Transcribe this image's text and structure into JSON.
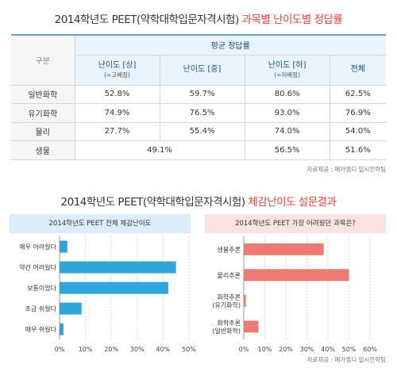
{
  "header": {
    "title_plain": "2014학년도 PEET(약학대학입문자격시험) ",
    "title_highlight": "과목별 난이도별 정답률"
  },
  "rate_table": {
    "gubun_label": "구분",
    "avg_label": "평균 정답률",
    "columns": [
      {
        "label": "난이도 [상]",
        "sub": "(=고배점)"
      },
      {
        "label": "난이도 [중]",
        "sub": ""
      },
      {
        "label": "난이도 [하]",
        "sub": "(=저배점)"
      },
      {
        "label": "전체",
        "sub": ""
      }
    ],
    "rows": [
      {
        "subject": "일반화학",
        "hi": "52.8%",
        "mid": "59.7%",
        "low": "80.6%",
        "total": "62.5%"
      },
      {
        "subject": "유기화학",
        "hi": "74.9%",
        "mid": "76.5%",
        "low": "93.0%",
        "total": "76.9%"
      },
      {
        "subject": "물리",
        "hi": "27.7%",
        "mid": "55.4%",
        "low": "74.0%",
        "total": "54.0%"
      },
      {
        "subject": "생물",
        "himid": "49.1%",
        "low": "56.5%",
        "total": "51.6%"
      }
    ],
    "source": "자료제공 : 메가엠디 입시전략팀"
  },
  "survey": {
    "title_plain": "2014학년도 PEET(약학대학입문자격시험) ",
    "title_highlight": "체감난이도 설문결과",
    "source": "자료제공 : 메가엠디 입시전략팀"
  },
  "chart_data": [
    {
      "type": "bar",
      "orientation": "horizontal",
      "title": "2014학년도 PEET 전체 체감난이도",
      "categories": [
        "매우 어려웠다",
        "약간 어려웠다",
        "보통이었다",
        "조금 쉬웠다",
        "매우 쉬웠다"
      ],
      "values": [
        3,
        45,
        42,
        8.5,
        1.5
      ],
      "xlim": [
        0,
        50
      ],
      "ticks": [
        "0%",
        "10%",
        "20%",
        "30%",
        "40%",
        "50%"
      ],
      "color": "#2ea6dc",
      "grid": true
    },
    {
      "type": "bar",
      "orientation": "horizontal",
      "title": "2014학년도 PEET 가장 어려웠던 과목은?",
      "categories": [
        "생물추론",
        "물리추론",
        "화학추론\n(유기화학)",
        "화학추론\n(일반화학)"
      ],
      "values": [
        38,
        50,
        1,
        7
      ],
      "xlim": [
        0,
        60
      ],
      "ticks": [
        "0%",
        "10%",
        "20%",
        "30%",
        "40%",
        "50%",
        "60%"
      ],
      "color": "#ee7b73",
      "grid": true
    }
  ]
}
